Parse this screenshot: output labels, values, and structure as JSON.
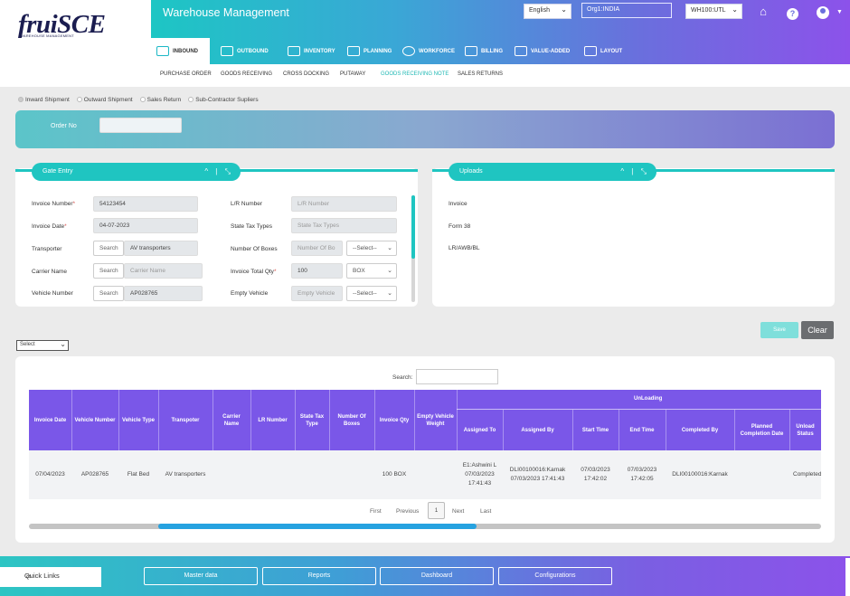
{
  "header": {
    "logo": "fruiSCE",
    "logo_sub": "WAREHOUSE MANAGEMENT",
    "app_title": "Warehouse Management",
    "language": "English",
    "org": "Org1:INDIA",
    "warehouse": "WH100:UTL"
  },
  "main_tabs": [
    "INBOUND",
    "OUTBOUND",
    "INVENTORY",
    "PLANNING",
    "WORKFORCE",
    "BILLING",
    "VALUE-ADDED",
    "LAYOUT"
  ],
  "sub_tabs": [
    "PURCHASE ORDER",
    "GOODS RECEIVING",
    "CROSS DOCKING",
    "PUTAWAY",
    "GOODS RECEIVING NOTE",
    "SALES RETURNS"
  ],
  "active_sub_tab": "GOODS RECEIVING NOTE",
  "shipping_types": [
    "Inward Shipment",
    "Outward Shipment",
    "Sales Return",
    "Sub-Contractor Supliers"
  ],
  "order": {
    "label": "Order No",
    "value": ""
  },
  "gate_entry": {
    "title": "Gate Entry",
    "invoice_number": {
      "label": "Invoice Number",
      "value": "54123454"
    },
    "invoice_date": {
      "label": "Invoice Date",
      "value": "04-07-2023"
    },
    "transporter": {
      "label": "Transporter",
      "search": "Search",
      "value": "AV transporters"
    },
    "carrier_name": {
      "label": "Carrier Name",
      "search": "Search",
      "placeholder": "Carrier Name"
    },
    "vehicle_number": {
      "label": "Vehicle Number",
      "search": "Search",
      "value": "AP028765"
    },
    "lr_number": {
      "label": "L/R Number",
      "placeholder": "L/R Number"
    },
    "state_tax": {
      "label": "State Tax Types",
      "placeholder": "State Tax Types"
    },
    "num_boxes": {
      "label": "Number Of Boxes",
      "placeholder": "Number Of Bo",
      "select": "--Select--"
    },
    "invoice_total_qty": {
      "label": "Invoice Total Qty",
      "value": "100",
      "unit": "BOX"
    },
    "empty_vehicle": {
      "label": "Empty Vehicle",
      "placeholder": "Empty Vehicle",
      "select": "--Select--"
    }
  },
  "uploads": {
    "title": "Uploads",
    "items": [
      "Invoice",
      "Form 38",
      "LR/AWB/BL"
    ]
  },
  "buttons": {
    "save": "Save",
    "clear": "Clear"
  },
  "page_size": "Select",
  "table": {
    "search_label": "Search:",
    "group_header": "UnLoading",
    "columns": [
      "Invoice Date",
      "Vehicle Number",
      "Vehicle Type",
      "Transpoter",
      "Carrier Name",
      "LR Number",
      "State Tax Type",
      "Number Of Boxes",
      "Invoice Qty",
      "Empty Vehicle Weight",
      "Assigned To",
      "Assigned By",
      "Start Time",
      "End Time",
      "Completed By",
      "Planned Completion Date",
      "Unload Status"
    ],
    "rows": [
      [
        "07/04/2023",
        "AP028765",
        "Flat Bed",
        "AV transporters",
        "",
        "",
        "",
        "",
        "100 BOX",
        "",
        "E1:Ashwini L 07/03/2023 17:41:43",
        "DLI00100016:Karnak 07/03/2023 17:41:43",
        "07/03/2023 17:42:02",
        "07/03/2023 17:42:05",
        "DLI00100016:Karnak",
        "",
        "Completed"
      ]
    ]
  },
  "pagination": {
    "first": "First",
    "previous": "Previous",
    "current": "1",
    "next": "Next",
    "last": "Last"
  },
  "footer": {
    "quick_links": "Quick Links",
    "links": [
      "Master data",
      "Reports",
      "Dashboard",
      "Configurations"
    ]
  },
  "colors": {
    "teal": "#1fc5c1",
    "purple": "#7a57e8",
    "brand": "#1b1d50"
  }
}
